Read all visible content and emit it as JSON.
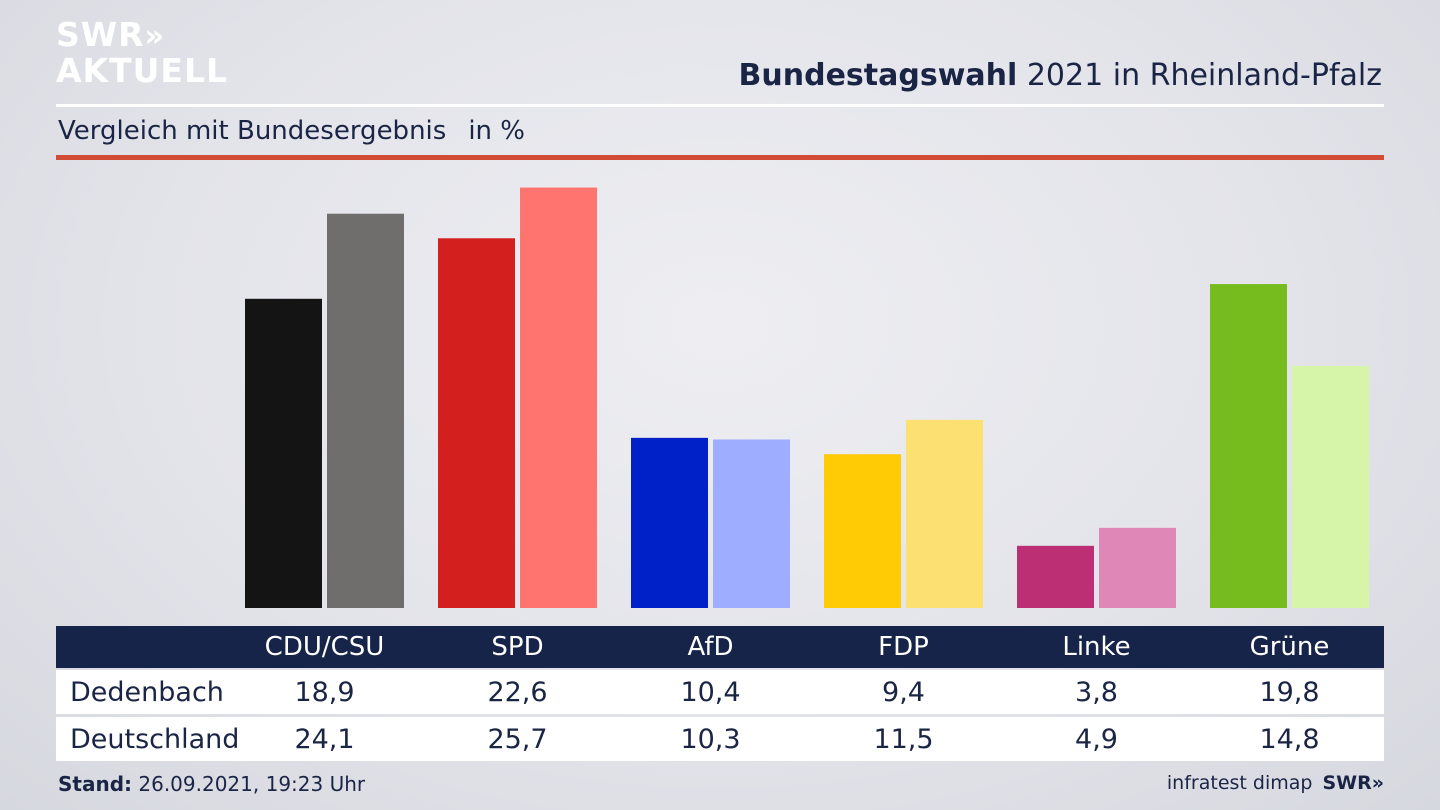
{
  "logo": {
    "line1": "SWR",
    "chevrons": "»",
    "line2": "AKTUELL"
  },
  "header": {
    "title_bold": "Bundestagswahl",
    "title_rest": " 2021 in Rheinland-Pfalz",
    "subtitle": "Vergleich mit Bundesergebnis",
    "unit": "in %"
  },
  "chart_data": {
    "type": "bar",
    "categories": [
      "CDU/CSU",
      "SPD",
      "AfD",
      "FDP",
      "Linke",
      "Grüne"
    ],
    "series": [
      {
        "name": "Dedenbach",
        "values": [
          18.9,
          22.6,
          10.4,
          9.4,
          3.8,
          19.8
        ],
        "display": [
          "18,9",
          "22,6",
          "10,4",
          "9,4",
          "3,8",
          "19,8"
        ]
      },
      {
        "name": "Deutschland",
        "values": [
          24.1,
          25.7,
          10.3,
          11.5,
          4.9,
          14.8
        ],
        "display": [
          "24,1",
          "25,7",
          "10,3",
          "11,5",
          "4,9",
          "14,8"
        ]
      }
    ],
    "colors_local": [
      "#141414",
      "#d41f1f",
      "#0020c8",
      "#ffcb05",
      "#bd2f75",
      "#76bc1e"
    ],
    "colors_national": [
      "#6f6e6c",
      "#ff746e",
      "#9eadff",
      "#fde072",
      "#df88b8",
      "#d6f5a9"
    ],
    "ylim": [
      0,
      26
    ]
  },
  "footer": {
    "stand_label": "Stand:",
    "stand_value": " 26.09.2021, 19:23 Uhr",
    "source": "infratest dimap",
    "brand": "SWR»"
  }
}
